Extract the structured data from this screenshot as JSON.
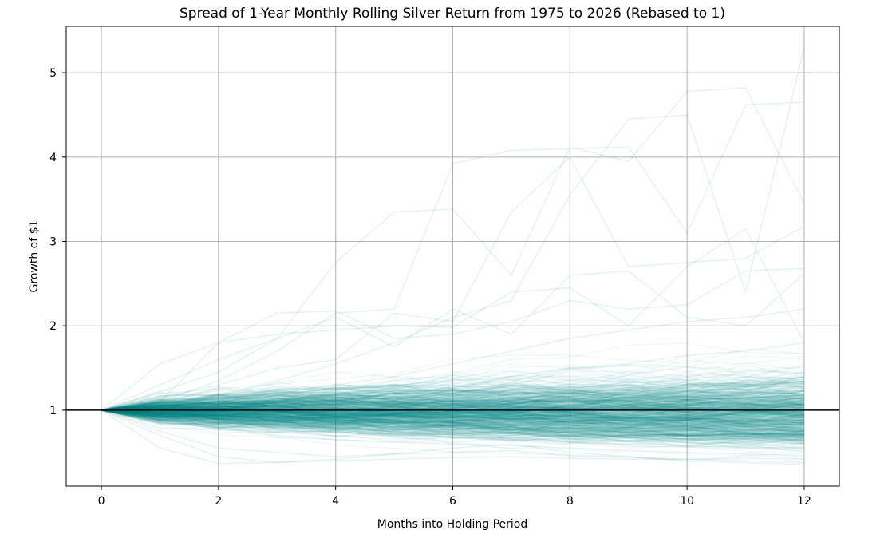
{
  "chart_data": {
    "type": "line",
    "title": "Spread of 1-Year Monthly Rolling Silver Return from 1975 to 2026 (Rebased to 1)",
    "xlabel": "Months into Holding Period",
    "ylabel": "Growth of $1",
    "x": [
      0,
      1,
      2,
      3,
      4,
      5,
      6,
      7,
      8,
      9,
      10,
      11,
      12
    ],
    "xlim": [
      -0.6,
      12.6
    ],
    "ylim": [
      0.1,
      5.55
    ],
    "xticks": [
      0,
      2,
      4,
      6,
      8,
      10,
      12
    ],
    "yticks": [
      1,
      2,
      3,
      4,
      5
    ],
    "xtick_labels": [
      "0",
      "2",
      "4",
      "6",
      "8",
      "10",
      "12"
    ],
    "ytick_labels": [
      "1",
      "2",
      "3",
      "4",
      "5"
    ],
    "grid": true,
    "legend": "none",
    "series_color": "#008080",
    "reference_line": {
      "y": 1,
      "color": "#000000"
    },
    "series_note": "Several hundred overlapping translucent rolling-window paths; representative paths listed below.",
    "series": [
      {
        "values": [
          1,
          1.22,
          1.45,
          1.85,
          2.75,
          3.35,
          3.38,
          2.6,
          4.12,
          3.95,
          4.78,
          4.82,
          3.45
        ]
      },
      {
        "values": [
          1,
          1.1,
          1.35,
          1.7,
          2.15,
          2.2,
          3.92,
          4.08,
          4.1,
          4.12,
          3.1,
          4.62,
          4.65
        ]
      },
      {
        "values": [
          1,
          1.05,
          1.18,
          1.35,
          1.55,
          1.8,
          2.1,
          2.3,
          3.55,
          4.45,
          4.5,
          2.4,
          5.3
        ]
      },
      {
        "values": [
          1,
          1.15,
          1.3,
          1.5,
          1.6,
          2.15,
          2.05,
          3.35,
          4.0,
          2.7,
          2.75,
          2.8,
          3.18
        ]
      },
      {
        "values": [
          1,
          1.1,
          1.8,
          2.15,
          2.18,
          1.85,
          1.9,
          2.05,
          2.3,
          2.2,
          2.25,
          2.65,
          2.68
        ]
      },
      {
        "values": [
          1,
          1.55,
          1.8,
          1.9,
          1.95,
          2.0,
          1.98,
          2.4,
          2.45,
          2.0,
          2.7,
          3.15,
          1.8
        ]
      },
      {
        "values": [
          1,
          1.3,
          1.6,
          1.85,
          2.1,
          1.75,
          2.2,
          1.9,
          2.6,
          2.65,
          2.1,
          2.0,
          2.62
        ]
      },
      {
        "values": [
          1,
          1.05,
          1.1,
          1.2,
          1.3,
          1.4,
          1.55,
          1.7,
          1.85,
          1.95,
          2.05,
          2.1,
          2.2
        ]
      },
      {
        "values": [
          1,
          1.08,
          1.15,
          1.2,
          1.25,
          1.3,
          1.35,
          1.4,
          1.5,
          1.55,
          1.65,
          1.7,
          1.8
        ]
      },
      {
        "values": [
          1,
          1.04,
          1.08,
          1.1,
          1.12,
          1.15,
          1.18,
          1.2,
          1.22,
          1.25,
          1.28,
          1.3,
          1.32
        ]
      },
      {
        "values": [
          1,
          1.02,
          1.03,
          1.05,
          1.06,
          1.08,
          1.1,
          1.12,
          1.13,
          1.15,
          1.16,
          1.18,
          1.2
        ]
      },
      {
        "values": [
          1,
          0.99,
          0.98,
          0.97,
          0.96,
          0.95,
          0.94,
          0.93,
          0.92,
          0.91,
          0.9,
          0.89,
          0.88
        ]
      },
      {
        "values": [
          1,
          0.96,
          0.93,
          0.9,
          0.87,
          0.85,
          0.82,
          0.8,
          0.78,
          0.76,
          0.74,
          0.72,
          0.7
        ]
      },
      {
        "values": [
          1,
          0.92,
          0.86,
          0.8,
          0.76,
          0.72,
          0.68,
          0.65,
          0.62,
          0.6,
          0.58,
          0.56,
          0.55
        ]
      },
      {
        "values": [
          1,
          0.75,
          0.55,
          0.5,
          0.45,
          0.48,
          0.5,
          0.52,
          0.46,
          0.44,
          0.42,
          0.4,
          0.38
        ]
      },
      {
        "values": [
          1,
          0.55,
          0.37,
          0.38,
          0.4,
          0.42,
          0.44,
          0.45,
          0.43,
          0.42,
          0.42,
          0.43,
          0.42
        ]
      },
      {
        "values": [
          1,
          0.7,
          0.45,
          0.38,
          0.42,
          0.48,
          0.55,
          0.6,
          0.5,
          0.45,
          0.4,
          0.38,
          0.36
        ]
      },
      {
        "values": [
          1,
          0.88,
          0.8,
          0.7,
          0.65,
          0.62,
          0.6,
          0.58,
          0.55,
          0.52,
          0.5,
          0.48,
          0.46
        ]
      }
    ]
  }
}
